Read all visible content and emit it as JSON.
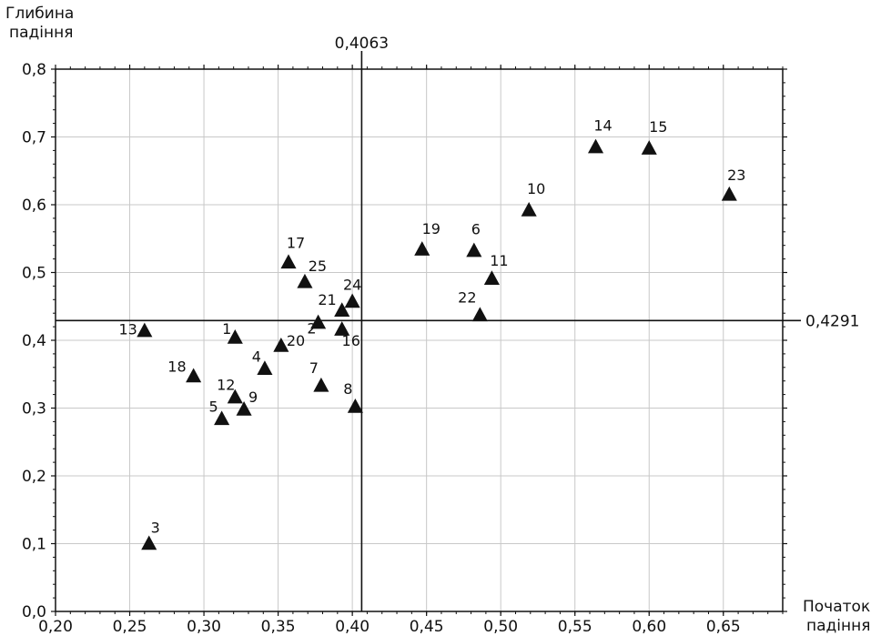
{
  "chart_data": {
    "type": "scatter",
    "ylabel_line1": "Глибина",
    "ylabel_line2": "падіння",
    "xlabel_line1": "Початок",
    "xlabel_line2": "падіння",
    "xlim": [
      0.2,
      0.69
    ],
    "ylim": [
      0.0,
      0.8
    ],
    "x_ticks": [
      0.2,
      0.25,
      0.3,
      0.35,
      0.4,
      0.45,
      0.5,
      0.55,
      0.6,
      0.65
    ],
    "x_tick_labels": [
      "0,20",
      "0,25",
      "0,30",
      "0,35",
      "0,40",
      "0,45",
      "0,50",
      "0,55",
      "0,60",
      "0,65"
    ],
    "y_ticks": [
      0.0,
      0.1,
      0.2,
      0.3,
      0.4,
      0.5,
      0.6,
      0.7,
      0.8
    ],
    "y_tick_labels": [
      "0,0",
      "0,1",
      "0,2",
      "0,3",
      "0,4",
      "0,5",
      "0,6",
      "0,7",
      "0,8"
    ],
    "grid": true,
    "marker": "triangle",
    "marker_color": "#111111",
    "reference_lines": {
      "vertical": {
        "x": 0.4063,
        "label": "0,4063"
      },
      "horizontal": {
        "y": 0.4291,
        "label": "0,4291"
      }
    },
    "points": [
      {
        "label": "1",
        "x": 0.321,
        "y": 0.404
      },
      {
        "label": "2",
        "x": 0.377,
        "y": 0.426
      },
      {
        "label": "3",
        "x": 0.263,
        "y": 0.1
      },
      {
        "label": "4",
        "x": 0.341,
        "y": 0.358
      },
      {
        "label": "5",
        "x": 0.312,
        "y": 0.284
      },
      {
        "label": "6",
        "x": 0.482,
        "y": 0.532
      },
      {
        "label": "7",
        "x": 0.379,
        "y": 0.333
      },
      {
        "label": "8",
        "x": 0.402,
        "y": 0.302
      },
      {
        "label": "9",
        "x": 0.327,
        "y": 0.298
      },
      {
        "label": "10",
        "x": 0.519,
        "y": 0.592
      },
      {
        "label": "11",
        "x": 0.494,
        "y": 0.491
      },
      {
        "label": "12",
        "x": 0.321,
        "y": 0.316
      },
      {
        "label": "13",
        "x": 0.26,
        "y": 0.414
      },
      {
        "label": "14",
        "x": 0.564,
        "y": 0.685
      },
      {
        "label": "15",
        "x": 0.6,
        "y": 0.683
      },
      {
        "label": "16",
        "x": 0.393,
        "y": 0.416
      },
      {
        "label": "17",
        "x": 0.357,
        "y": 0.515
      },
      {
        "label": "18",
        "x": 0.293,
        "y": 0.347
      },
      {
        "label": "19",
        "x": 0.447,
        "y": 0.534
      },
      {
        "label": "20",
        "x": 0.352,
        "y": 0.392
      },
      {
        "label": "21",
        "x": 0.393,
        "y": 0.444
      },
      {
        "label": "22",
        "x": 0.486,
        "y": 0.437
      },
      {
        "label": "23",
        "x": 0.654,
        "y": 0.615
      },
      {
        "label": "24",
        "x": 0.4,
        "y": 0.457
      },
      {
        "label": "25",
        "x": 0.368,
        "y": 0.486
      }
    ]
  }
}
